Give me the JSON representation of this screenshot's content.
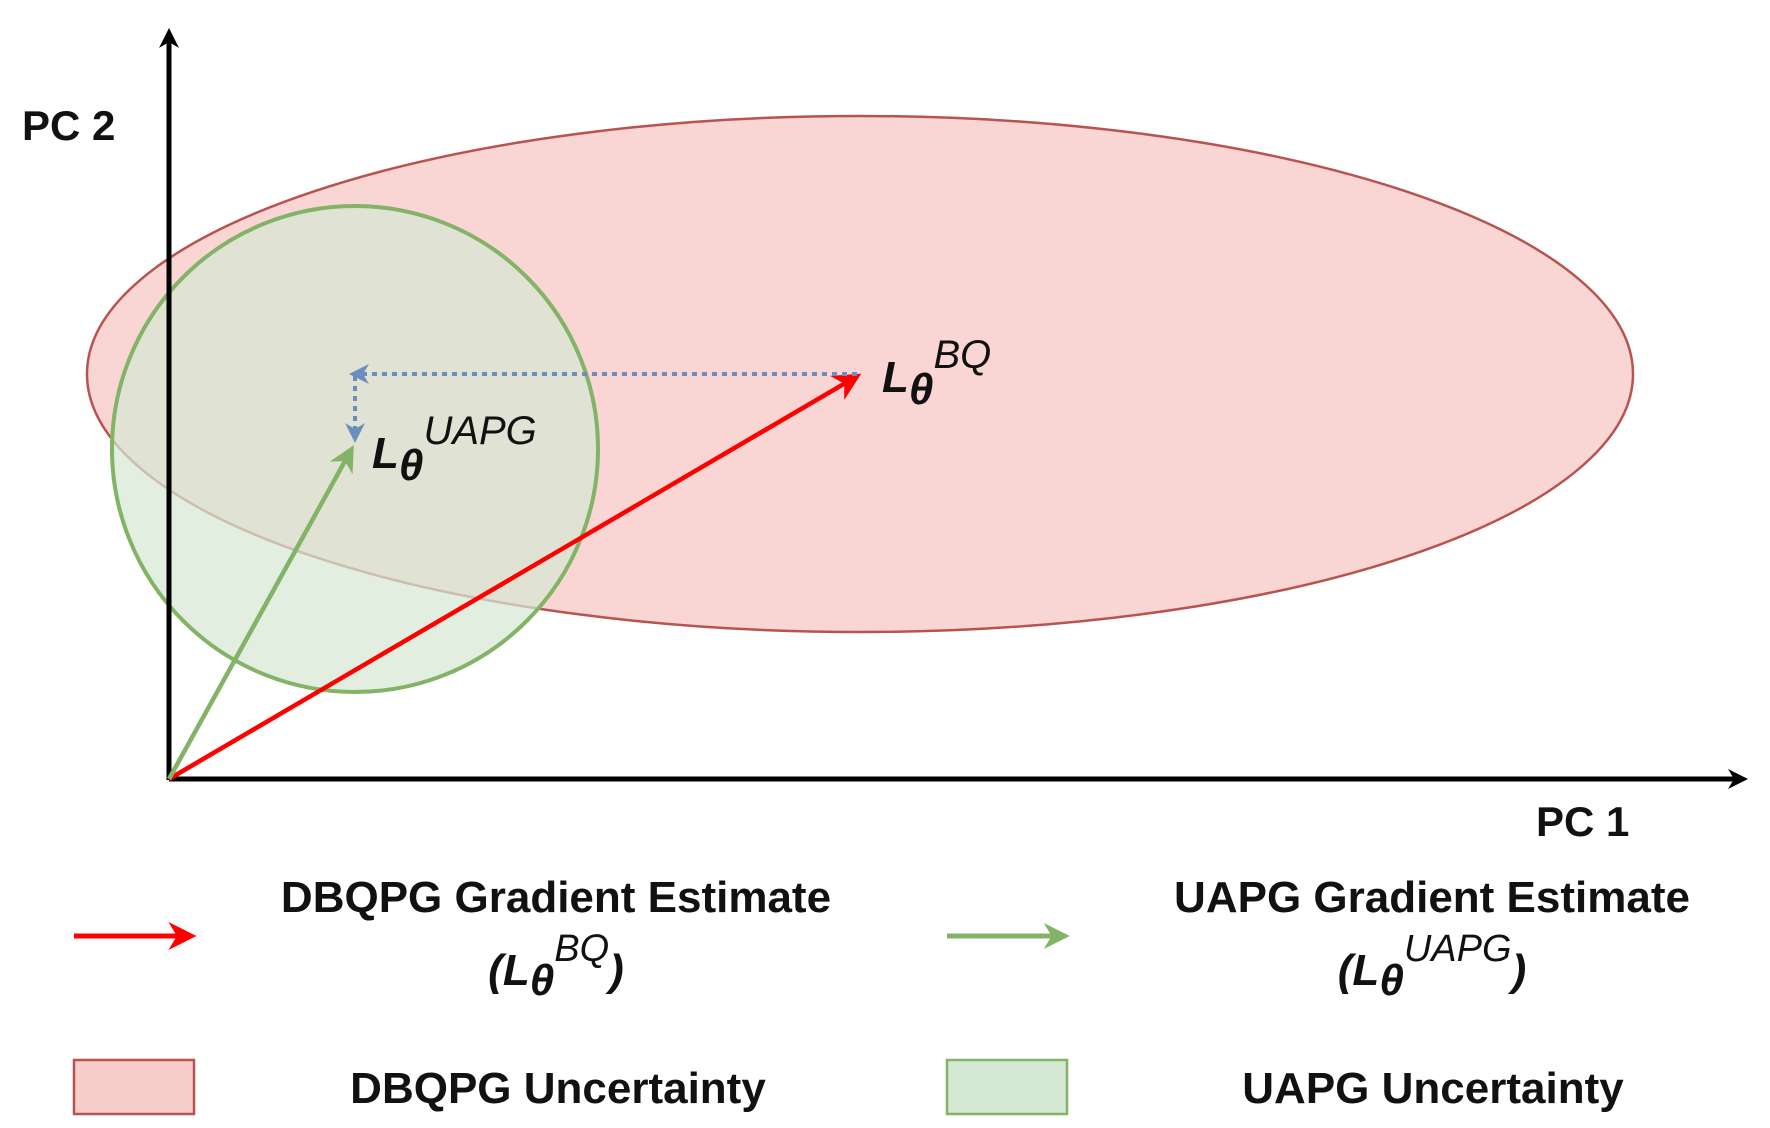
{
  "axes": {
    "y_label": "PC 2",
    "x_label": "PC 1"
  },
  "vectors": {
    "bq": {
      "main": "L",
      "sub": "θ",
      "sup": "BQ"
    },
    "uapg": {
      "main": "L",
      "sub": "θ",
      "sup": "UAPG"
    }
  },
  "legend": {
    "dbqpg_gradient": {
      "title": "DBQPG Gradient Estimate",
      "paren_open": "(",
      "main": "L",
      "sub": "θ",
      "sup": "BQ",
      "paren_close": ")"
    },
    "uapg_gradient": {
      "title": "UAPG Gradient Estimate",
      "paren_open": "(",
      "main": "L",
      "sub": "θ",
      "sup": "UAPG",
      "paren_close": ")"
    },
    "dbqpg_uncertainty": {
      "title": "DBQPG Uncertainty"
    },
    "uapg_uncertainty": {
      "title": "UAPG Uncertainty"
    }
  },
  "colors": {
    "red_arrow": "#ff0000",
    "green_arrow": "#82b366",
    "blue_dotted": "#6c8ebf",
    "ellipse_fill": "#f8cecc",
    "ellipse_stroke": "#b85450",
    "circle_fill": "#d5e8d4",
    "circle_stroke": "#82b366",
    "axis": "#000000"
  }
}
